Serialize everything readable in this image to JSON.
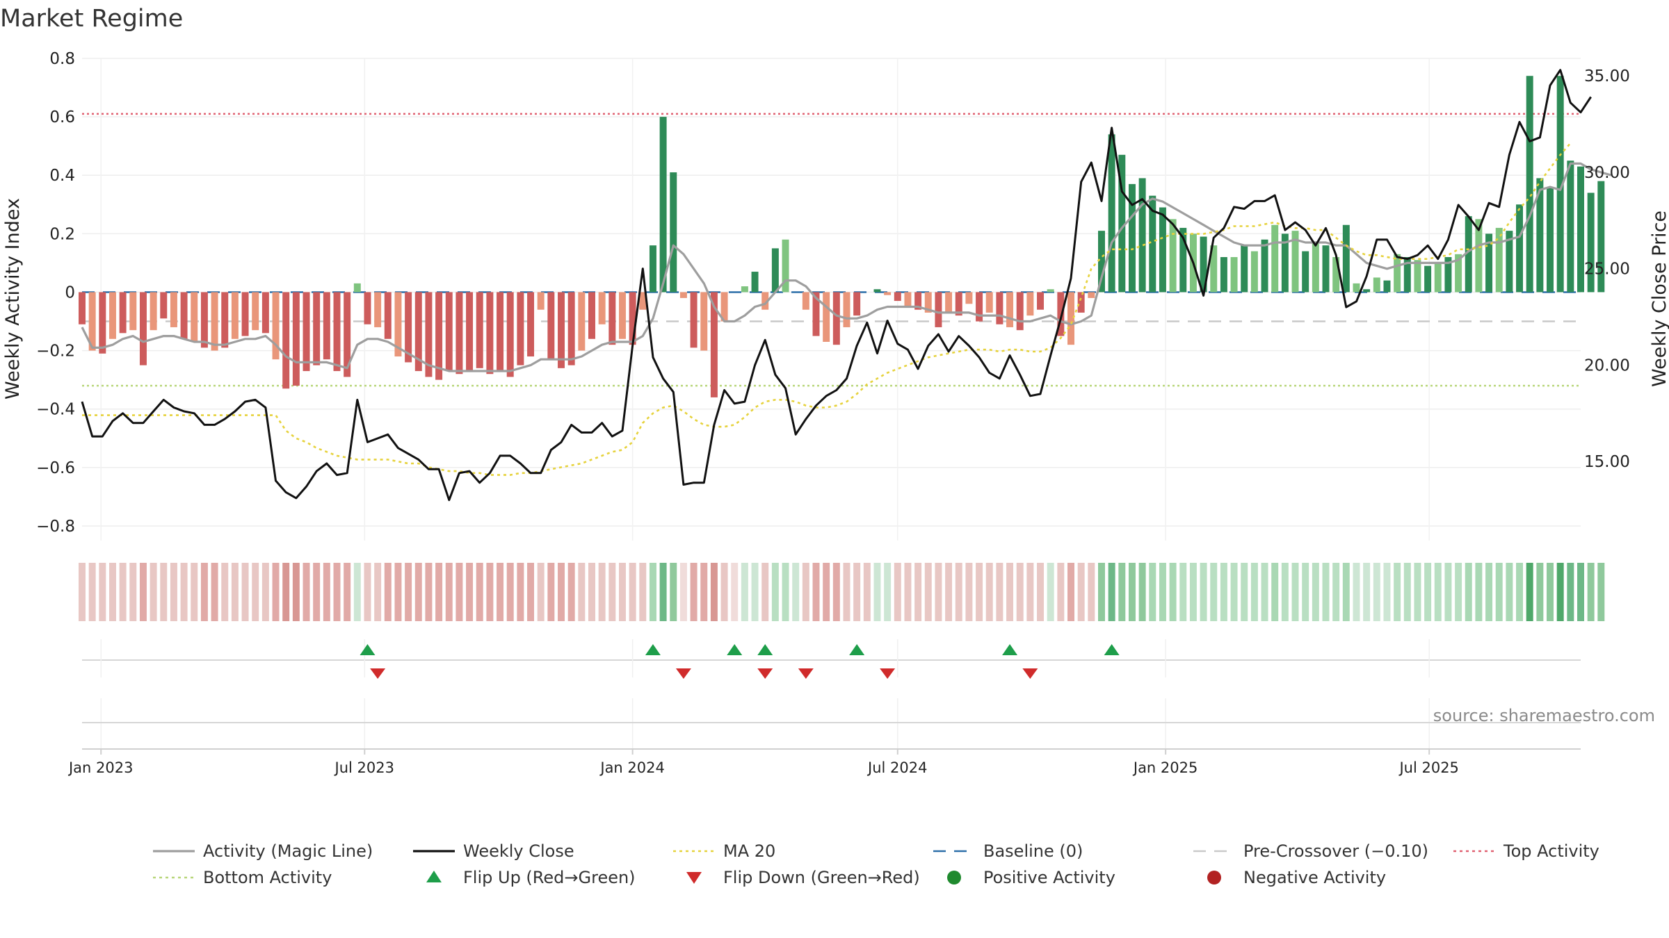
{
  "title": "Market Regime",
  "source": "source: sharemaestro.com",
  "chart_data": {
    "type": "bar",
    "title": "Market Regime",
    "ylabel_left": "Weekly Activity Index",
    "ylabel_right": "Weekly Close Price",
    "ylim_left": [
      -0.85,
      0.8
    ],
    "ylim_right": [
      10.9,
      35.9
    ],
    "yticks_left": [
      0.8,
      0.6,
      0.4,
      0.2,
      0,
      -0.2,
      -0.4,
      -0.6,
      -0.8
    ],
    "yticks_left_labels": [
      "0.8",
      "0.6",
      "0.4",
      "0.2",
      "0",
      "−0.2",
      "−0.4",
      "−0.6",
      "−0.8"
    ],
    "yticks_right": [
      35,
      30,
      25,
      20,
      15
    ],
    "yticks_right_labels": [
      "35.00",
      "30.00",
      "25.00",
      "20.00",
      "15.00"
    ],
    "x_range": [
      "2022-12-19",
      "2025-10-13"
    ],
    "x_tick_dates": [
      "2023-01-01",
      "2023-07-01",
      "2024-01-01",
      "2024-07-01",
      "2025-01-01",
      "2025-07-01"
    ],
    "x_tick_labels": [
      "Jan 2023",
      "Jul 2023",
      "Jan 2024",
      "Jul 2024",
      "Jan 2025",
      "Jul 2025"
    ],
    "first_week": "2022-12-19",
    "week_step_days": 7,
    "activity": [
      -0.11,
      -0.2,
      -0.21,
      -0.16,
      -0.14,
      -0.13,
      -0.25,
      -0.13,
      -0.09,
      -0.12,
      -0.16,
      -0.17,
      -0.19,
      -0.2,
      -0.19,
      -0.16,
      -0.15,
      -0.13,
      -0.14,
      -0.23,
      -0.33,
      -0.32,
      -0.27,
      -0.25,
      -0.23,
      -0.27,
      -0.29,
      0.03,
      -0.11,
      -0.12,
      -0.16,
      -0.22,
      -0.24,
      -0.27,
      -0.29,
      -0.3,
      -0.27,
      -0.28,
      -0.27,
      -0.26,
      -0.28,
      -0.27,
      -0.29,
      -0.25,
      -0.22,
      -0.06,
      -0.23,
      -0.26,
      -0.25,
      -0.2,
      -0.16,
      -0.11,
      -0.18,
      -0.16,
      -0.18,
      -0.06,
      0.16,
      0.6,
      0.41,
      -0.02,
      -0.19,
      -0.2,
      -0.36,
      -0.1,
      0.0,
      0.02,
      0.07,
      -0.06,
      0.15,
      0.18,
      0.0,
      -0.06,
      -0.15,
      -0.17,
      -0.18,
      -0.12,
      -0.08,
      0.0,
      0.01,
      -0.01,
      -0.03,
      -0.05,
      -0.06,
      -0.07,
      -0.12,
      -0.07,
      -0.08,
      -0.04,
      -0.1,
      -0.07,
      -0.11,
      -0.12,
      -0.13,
      -0.08,
      -0.06,
      0.01,
      -0.15,
      -0.18,
      -0.07,
      -0.02,
      0.21,
      0.54,
      0.47,
      0.37,
      0.39,
      0.33,
      0.29,
      0.25,
      0.22,
      0.2,
      0.19,
      0.16,
      0.12,
      0.12,
      0.16,
      0.14,
      0.18,
      0.23,
      0.2,
      0.21,
      0.14,
      0.17,
      0.16,
      0.12,
      0.23,
      0.03,
      0.01,
      0.05,
      0.04,
      0.13,
      0.12,
      0.11,
      0.09,
      0.1,
      0.12,
      0.13,
      0.26,
      0.25,
      0.2,
      0.22,
      0.21,
      0.3,
      0.74,
      0.39,
      0.36,
      0.74,
      0.45,
      0.43,
      0.34,
      0.38
    ],
    "close": [
      18.1,
      16.3,
      16.3,
      17.1,
      17.5,
      17.0,
      17.0,
      17.6,
      18.2,
      17.8,
      17.6,
      17.5,
      16.9,
      16.9,
      17.2,
      17.6,
      18.1,
      18.2,
      17.8,
      14.0,
      13.4,
      13.1,
      13.7,
      14.5,
      14.9,
      14.3,
      14.4,
      18.2,
      16.0,
      16.2,
      16.4,
      15.7,
      15.4,
      15.1,
      14.6,
      14.6,
      13.0,
      14.4,
      14.5,
      13.9,
      14.4,
      15.3,
      15.3,
      14.9,
      14.4,
      14.4,
      15.6,
      16.0,
      16.9,
      16.5,
      16.5,
      17.0,
      16.3,
      16.6,
      21.0,
      25.0,
      20.4,
      19.3,
      18.6,
      13.8,
      13.9,
      13.9,
      16.9,
      18.7,
      18.0,
      18.1,
      20.0,
      21.3,
      19.5,
      18.8,
      16.4,
      17.2,
      17.9,
      18.4,
      18.7,
      19.3,
      21.0,
      22.2,
      20.6,
      22.3,
      21.1,
      20.8,
      19.8,
      21.0,
      21.6,
      20.7,
      21.5,
      21.0,
      20.4,
      19.6,
      19.3,
      20.5,
      19.5,
      18.4,
      18.5,
      20.5,
      22.4,
      24.5,
      29.5,
      30.5,
      28.5,
      32.3,
      29.0,
      28.3,
      28.6,
      28.0,
      27.8,
      27.3,
      26.6,
      25.3,
      23.6,
      26.6,
      27.1,
      28.2,
      28.1,
      28.5,
      28.5,
      28.8,
      27.0,
      27.4,
      27.0,
      26.2,
      27.1,
      25.7,
      23.0,
      23.3,
      24.6,
      26.5,
      26.5,
      25.6,
      25.5,
      25.7,
      26.2,
      25.5,
      26.5,
      28.3,
      27.7,
      27.0,
      28.4,
      28.2,
      30.9,
      32.6,
      31.6,
      31.8,
      34.5,
      35.3,
      33.6,
      33.1,
      33.9
    ],
    "ma20": [
      17.4,
      17.4,
      17.4,
      17.4,
      17.4,
      17.4,
      17.4,
      17.4,
      17.4,
      17.4,
      17.4,
      17.4,
      17.4,
      17.4,
      17.4,
      17.4,
      17.4,
      17.4,
      17.4,
      17.4,
      16.6,
      16.2,
      16.0,
      15.7,
      15.5,
      15.3,
      15.2,
      15.1,
      15.1,
      15.1,
      15.1,
      15.0,
      14.9,
      14.9,
      14.7,
      14.6,
      14.5,
      14.5,
      14.4,
      14.4,
      14.3,
      14.3,
      14.3,
      14.4,
      14.4,
      14.5,
      14.6,
      14.7,
      14.8,
      14.9,
      15.1,
      15.3,
      15.5,
      15.6,
      16.0,
      17.0,
      17.5,
      17.8,
      17.9,
      17.6,
      17.2,
      16.9,
      16.8,
      16.8,
      16.9,
      17.3,
      17.8,
      18.1,
      18.2,
      18.2,
      18.1,
      17.9,
      17.8,
      17.8,
      17.9,
      18.1,
      18.5,
      19.0,
      19.3,
      19.6,
      19.8,
      20.0,
      20.2,
      20.4,
      20.5,
      20.6,
      20.7,
      20.8,
      20.8,
      20.8,
      20.7,
      20.8,
      20.8,
      20.7,
      20.7,
      20.9,
      21.4,
      22.1,
      23.5,
      25.0,
      25.6,
      26.0,
      26.0,
      26.0,
      26.2,
      26.4,
      26.6,
      26.8,
      26.8,
      26.8,
      26.8,
      26.9,
      27.0,
      27.2,
      27.2,
      27.2,
      27.3,
      27.4,
      27.2,
      27.1,
      27.1,
      27.0,
      27.0,
      26.6,
      26.2,
      25.9,
      25.7,
      25.7,
      25.6,
      25.5,
      25.5,
      25.5,
      25.5,
      25.6,
      25.7,
      26.0,
      26.0,
      26.1,
      26.2,
      26.6,
      27.4,
      28.1,
      28.7,
      29.5,
      30.2,
      30.9,
      31.5
    ],
    "magic_line": [
      -0.12,
      -0.19,
      -0.19,
      -0.18,
      -0.16,
      -0.15,
      -0.17,
      -0.16,
      -0.15,
      -0.15,
      -0.16,
      -0.17,
      -0.17,
      -0.18,
      -0.18,
      -0.17,
      -0.16,
      -0.16,
      -0.15,
      -0.18,
      -0.22,
      -0.24,
      -0.24,
      -0.24,
      -0.24,
      -0.25,
      -0.26,
      -0.18,
      -0.16,
      -0.16,
      -0.17,
      -0.19,
      -0.21,
      -0.23,
      -0.25,
      -0.26,
      -0.27,
      -0.27,
      -0.27,
      -0.27,
      -0.27,
      -0.27,
      -0.27,
      -0.26,
      -0.25,
      -0.23,
      -0.23,
      -0.23,
      -0.23,
      -0.22,
      -0.2,
      -0.18,
      -0.17,
      -0.17,
      -0.17,
      -0.15,
      -0.09,
      0.03,
      0.16,
      0.13,
      0.08,
      0.03,
      -0.05,
      -0.1,
      -0.1,
      -0.08,
      -0.05,
      -0.04,
      0.0,
      0.04,
      0.04,
      0.02,
      -0.02,
      -0.05,
      -0.08,
      -0.09,
      -0.09,
      -0.08,
      -0.06,
      -0.05,
      -0.05,
      -0.05,
      -0.05,
      -0.06,
      -0.07,
      -0.07,
      -0.07,
      -0.07,
      -0.08,
      -0.08,
      -0.08,
      -0.09,
      -0.1,
      -0.1,
      -0.09,
      -0.08,
      -0.1,
      -0.11,
      -0.1,
      -0.08,
      0.05,
      0.17,
      0.22,
      0.26,
      0.3,
      0.32,
      0.31,
      0.29,
      0.27,
      0.25,
      0.23,
      0.21,
      0.19,
      0.17,
      0.16,
      0.16,
      0.16,
      0.17,
      0.17,
      0.18,
      0.17,
      0.17,
      0.17,
      0.16,
      0.16,
      0.13,
      0.1,
      0.09,
      0.08,
      0.09,
      0.1,
      0.1,
      0.1,
      0.1,
      0.1,
      0.11,
      0.14,
      0.16,
      0.17,
      0.17,
      0.18,
      0.19,
      0.26,
      0.35,
      0.36,
      0.35,
      0.44,
      0.44,
      0.42,
      0.41,
      0.4
    ],
    "regime_strip": [
      "#e8c7c4",
      "#e8c7c4",
      "#e8c7c4",
      "#e8c7c4",
      "#e8c7c4",
      "#e8c7c4",
      "#e1aaa7",
      "#e8c7c4",
      "#e8c7c4",
      "#e8c7c4",
      "#e8c7c4",
      "#e8c7c4",
      "#e1aaa7",
      "#e1aaa7",
      "#e8c7c4",
      "#e8c7c4",
      "#e8c7c4",
      "#e8c7c4",
      "#e8c7c4",
      "#e1aaa7",
      "#d89793",
      "#d89793",
      "#e1aaa7",
      "#e1aaa7",
      "#e1aaa7",
      "#e1aaa7",
      "#e1aaa7",
      "#cde6d4",
      "#e8c7c4",
      "#e8c7c4",
      "#e1aaa7",
      "#e1aaa7",
      "#e1aaa7",
      "#e1aaa7",
      "#e1aaa7",
      "#e1aaa7",
      "#e1aaa7",
      "#e1aaa7",
      "#e1aaa7",
      "#e1aaa7",
      "#e1aaa7",
      "#e1aaa7",
      "#e1aaa7",
      "#e1aaa7",
      "#e1aaa7",
      "#e8c7c4",
      "#e1aaa7",
      "#e1aaa7",
      "#e1aaa7",
      "#e8c7c4",
      "#e8c7c4",
      "#e8c7c4",
      "#e8c7c4",
      "#e8c7c4",
      "#e8c7c4",
      "#e8c7c4",
      "#a9d8b4",
      "#6db887",
      "#8fc99c",
      "#f0dcda",
      "#e1aaa7",
      "#e1aaa7",
      "#d89793",
      "#e8c7c4",
      "#f0dcda",
      "#cde6d4",
      "#cde6d4",
      "#e8c7c4",
      "#b9dfc2",
      "#b9dfc2",
      "#cde6d4",
      "#e8c7c4",
      "#e1aaa7",
      "#e1aaa7",
      "#e1aaa7",
      "#e8c7c4",
      "#e8c7c4",
      "#e8c7c4",
      "#cde6d4",
      "#cde6d4",
      "#e8c7c4",
      "#e8c7c4",
      "#e8c7c4",
      "#e8c7c4",
      "#e8c7c4",
      "#e8c7c4",
      "#e8c7c4",
      "#e8c7c4",
      "#e8c7c4",
      "#e8c7c4",
      "#e8c7c4",
      "#e8c7c4",
      "#e8c7c4",
      "#e8c7c4",
      "#e8c7c4",
      "#cde6d4",
      "#e8c7c4",
      "#e1aaa7",
      "#e8c7c4",
      "#e8c7c4",
      "#8fc99c",
      "#6db887",
      "#8fc99c",
      "#8fc99c",
      "#8fc99c",
      "#a9d8b4",
      "#a9d8b4",
      "#a9d8b4",
      "#b9dfc2",
      "#b9dfc2",
      "#b9dfc2",
      "#b9dfc2",
      "#b9dfc2",
      "#b9dfc2",
      "#b9dfc2",
      "#b9dfc2",
      "#b9dfc2",
      "#a9d8b4",
      "#b9dfc2",
      "#b9dfc2",
      "#b9dfc2",
      "#b9dfc2",
      "#b9dfc2",
      "#b9dfc2",
      "#a9d8b4",
      "#cde6d4",
      "#cde6d4",
      "#cde6d4",
      "#cde6d4",
      "#b9dfc2",
      "#b9dfc2",
      "#b9dfc2",
      "#b9dfc2",
      "#b9dfc2",
      "#b9dfc2",
      "#b9dfc2",
      "#a9d8b4",
      "#a9d8b4",
      "#a9d8b4",
      "#a9d8b4",
      "#a9d8b4",
      "#a9d8b4",
      "#4fa86a",
      "#8fc99c",
      "#8fc99c",
      "#4fa86a",
      "#6db887",
      "#6db887",
      "#8fc99c",
      "#8fc99c"
    ],
    "flip_up_weeks": [
      28,
      56,
      64,
      67,
      76,
      91,
      101
    ],
    "flip_down_weeks": [
      29,
      59,
      67,
      71,
      79,
      93
    ],
    "thresholds": {
      "top_activity": 0.61,
      "bottom_activity": -0.32,
      "pre_crossover": -0.1,
      "baseline": 0
    },
    "grid": true,
    "legend_position": "bottom",
    "legend": [
      {
        "label": "Activity (Magic Line)",
        "kind": "line-solid",
        "color": "#9e9e9e"
      },
      {
        "label": "Weekly Close",
        "kind": "line-solid",
        "color": "#111111"
      },
      {
        "label": "MA 20",
        "kind": "line-dotted",
        "color": "#e6d23c"
      },
      {
        "label": "Baseline (0)",
        "kind": "line-dashed",
        "color": "#2b6ea8"
      },
      {
        "label": "Pre-Crossover (−0.10)",
        "kind": "line-dashed",
        "color": "#c9c9c9"
      },
      {
        "label": "Top Activity",
        "kind": "line-dotted",
        "color": "#e06070"
      },
      {
        "label": "Bottom Activity",
        "kind": "line-dotted",
        "color": "#b8d67a"
      },
      {
        "label": "Flip Up (Red→Green)",
        "kind": "triangle-up",
        "color": "#1e9e4a"
      },
      {
        "label": "Flip Down (Green→Red)",
        "kind": "triangle-down",
        "color": "#d02b2b"
      },
      {
        "label": "Positive Activity",
        "kind": "dot",
        "color": "#1f8a2e"
      },
      {
        "label": "Negative Activity",
        "kind": "dot",
        "color": "#b22222"
      }
    ],
    "colors": {
      "pos_strong": "#2e8b57",
      "pos_light": "#7fc47f",
      "neg_strong": "#cd5c5c",
      "neg_light": "#e9967a",
      "close": "#111111",
      "magic": "#9e9e9e",
      "ma20": "#e6d23c",
      "baseline": "#2b6ea8",
      "pre_crossover": "#c9c9c9",
      "top": "#e06070",
      "bottom": "#b8d67a",
      "flip_up": "#1e9e4a",
      "flip_down": "#d02b2b"
    }
  }
}
